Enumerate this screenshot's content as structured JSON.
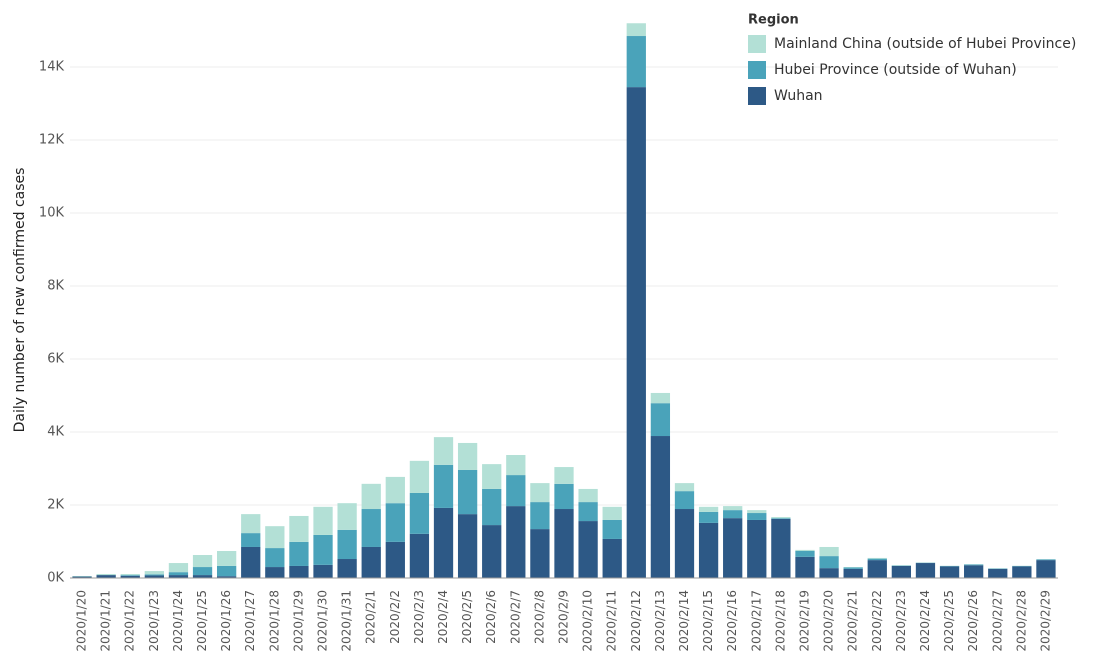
{
  "chart_data": {
    "type": "stacked-bar",
    "y_label": "Daily number of new confirmed cases",
    "legend_title": "Region",
    "categories": [
      "2020/1/20",
      "2020/1/21",
      "2020/1/22",
      "2020/1/23",
      "2020/1/24",
      "2020/1/25",
      "2020/1/26",
      "2020/1/27",
      "2020/1/28",
      "2020/1/29",
      "2020/1/30",
      "2020/1/31",
      "2020/2/1",
      "2020/2/2",
      "2020/2/3",
      "2020/2/4",
      "2020/2/5",
      "2020/2/6",
      "2020/2/7",
      "2020/2/8",
      "2020/2/9",
      "2020/2/10",
      "2020/2/11",
      "2020/2/12",
      "2020/2/13",
      "2020/2/14",
      "2020/2/15",
      "2020/2/16",
      "2020/2/17",
      "2020/2/18",
      "2020/2/19",
      "2020/2/20",
      "2020/2/21",
      "2020/2/22",
      "2020/2/23",
      "2020/2/24",
      "2020/2/25",
      "2020/2/26",
      "2020/2/27",
      "2020/2/28",
      "2020/2/29"
    ],
    "series": [
      {
        "name": "Wuhan",
        "color": "#2d5986",
        "values": [
          40,
          80,
          60,
          70,
          80,
          80,
          50,
          850,
          300,
          330,
          360,
          520,
          850,
          990,
          1210,
          1920,
          1750,
          1450,
          1970,
          1340,
          1890,
          1560,
          1070,
          13450,
          3890,
          1890,
          1510,
          1640,
          1590,
          1620,
          580,
          270,
          250,
          490,
          330,
          410,
          320,
          350,
          250,
          320,
          490
        ]
      },
      {
        "name": "Hubei Province (outside of Wuhan)",
        "color": "#4aa3ba",
        "values": [
          0,
          0,
          20,
          30,
          80,
          220,
          280,
          380,
          520,
          660,
          820,
          800,
          1040,
          1060,
          1120,
          1180,
          1210,
          990,
          850,
          740,
          690,
          520,
          520,
          1400,
          900,
          490,
          300,
          220,
          190,
          20,
          160,
          330,
          40,
          40,
          10,
          10,
          10,
          20,
          10,
          10,
          20
        ]
      },
      {
        "name": "Mainland China (outside of Hubei Province)",
        "color": "#b3e0d6",
        "values": [
          15,
          30,
          30,
          90,
          250,
          330,
          410,
          520,
          600,
          710,
          770,
          730,
          690,
          720,
          880,
          760,
          740,
          680,
          550,
          520,
          460,
          360,
          360,
          350,
          280,
          220,
          140,
          110,
          80,
          30,
          30,
          250,
          10,
          20,
          10,
          5,
          5,
          5,
          5,
          5,
          5
        ]
      }
    ],
    "ylim": [
      0,
      15700
    ],
    "yticks": [
      {
        "value": 0,
        "label": "0K"
      },
      {
        "value": 2000,
        "label": "2K"
      },
      {
        "value": 4000,
        "label": "4K"
      },
      {
        "value": 6000,
        "label": "6K"
      },
      {
        "value": 8000,
        "label": "8K"
      },
      {
        "value": 10000,
        "label": "10K"
      },
      {
        "value": 12000,
        "label": "12K"
      },
      {
        "value": 14000,
        "label": "14K"
      }
    ],
    "grid": true
  }
}
